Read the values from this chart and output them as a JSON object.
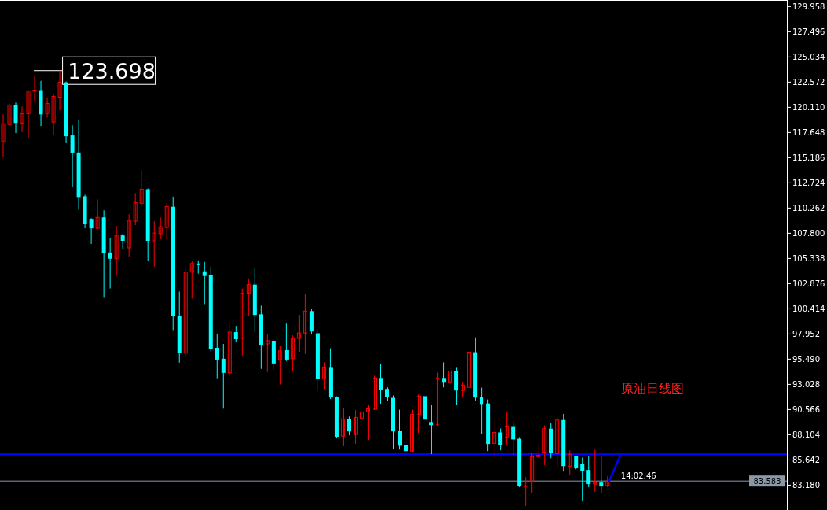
{
  "chart_data": {
    "type": "candlestick",
    "title": "原油日线图",
    "categories": [
      null,
      null,
      null,
      null,
      null,
      null,
      null,
      null,
      null,
      null,
      null,
      null,
      null,
      null,
      null,
      null,
      null,
      null,
      null,
      null,
      null,
      null,
      null,
      null,
      null,
      null,
      null,
      null,
      null,
      null,
      null,
      null,
      null,
      null,
      null,
      null,
      null,
      null,
      null,
      null,
      null,
      null,
      null,
      null,
      null,
      null,
      null,
      null,
      null,
      null,
      null,
      null,
      null,
      null,
      null,
      null,
      null,
      null,
      null,
      null,
      null,
      null,
      null,
      null,
      null,
      null,
      null,
      null,
      null,
      null,
      null,
      null,
      null,
      null,
      null,
      null,
      null,
      null,
      null,
      null,
      null,
      null,
      null,
      null,
      null,
      null,
      null,
      null,
      null,
      null,
      null,
      null,
      null,
      null,
      null,
      null,
      null,
      null,
      null,
      null,
      null,
      null,
      null,
      null,
      null,
      null,
      null,
      null,
      null,
      null,
      null,
      null,
      null,
      null,
      null,
      null,
      null,
      null,
      null,
      null,
      null,
      null,
      null,
      null,
      null
    ],
    "ohlc": [
      [
        116.75,
        119.42,
        115.22,
        118.5
      ],
      [
        118.43,
        120.41,
        118.35,
        120.34
      ],
      [
        120.34,
        120.57,
        117.59,
        118.58
      ],
      [
        118.58,
        120.18,
        117.67,
        119.5
      ],
      [
        119.5,
        121.79,
        117.13,
        121.71
      ],
      [
        121.71,
        123.16,
        120.72,
        121.79
      ],
      [
        121.79,
        122.7,
        118.28,
        119.42
      ],
      [
        119.5,
        121.02,
        119.12,
        120.49
      ],
      [
        118.66,
        121.41,
        117.44,
        121.18
      ],
      [
        121.1,
        123.698,
        119.8,
        122.55
      ],
      [
        122.55,
        122.63,
        116.6,
        117.28
      ],
      [
        117.36,
        118.35,
        112.32,
        115.68
      ],
      [
        115.69,
        118.89,
        110.11,
        111.34
      ],
      [
        111.41,
        111.56,
        108.28,
        108.74
      ],
      [
        109.2,
        109.27,
        106.76,
        108.28
      ],
      [
        108.28,
        111.11,
        108.21,
        109.35
      ],
      [
        109.35,
        110.04,
        101.56,
        105.84
      ],
      [
        105.92,
        107.29,
        102.4,
        105.31
      ],
      [
        105.31,
        108.51,
        103.63,
        107.59
      ],
      [
        107.59,
        107.75,
        106.3,
        107.06
      ],
      [
        106.37,
        109.66,
        105.53,
        109.05
      ],
      [
        108.97,
        111.72,
        108.59,
        110.8
      ],
      [
        110.73,
        113.93,
        110.42,
        112.1
      ],
      [
        112.1,
        112.18,
        105.08,
        107.06
      ],
      [
        107.06,
        108.97,
        104.54,
        107.82
      ],
      [
        107.75,
        109.35,
        107.21,
        108.44
      ],
      [
        108.36,
        110.73,
        107.21,
        110.42
      ],
      [
        110.39,
        111.38,
        98.33,
        99.7
      ],
      [
        99.73,
        102.1,
        95.15,
        96.07
      ],
      [
        96.07,
        104.39,
        95.76,
        104.0
      ],
      [
        104.0,
        105.07,
        101.41,
        104.84
      ],
      [
        104.84,
        105.15,
        103.85,
        104.69
      ],
      [
        104.08,
        105.0,
        100.87,
        103.62
      ],
      [
        103.7,
        104.54,
        96.22,
        96.52
      ],
      [
        96.6,
        97.97,
        93.62,
        95.45
      ],
      [
        95.53,
        96.98,
        90.65,
        94.15
      ],
      [
        94.15,
        99.04,
        93.85,
        98.13
      ],
      [
        98.13,
        98.74,
        97.21,
        97.44
      ],
      [
        97.52,
        102.4,
        95.84,
        101.94
      ],
      [
        101.94,
        103.39,
        99.73,
        102.78
      ],
      [
        102.78,
        104.39,
        98.13,
        99.81
      ],
      [
        99.88,
        100.72,
        94.54,
        96.9
      ],
      [
        96.98,
        97.97,
        94.23,
        97.29
      ],
      [
        97.29,
        97.44,
        94.46,
        95.07
      ],
      [
        95.45,
        96.83,
        93.01,
        96.3
      ],
      [
        96.37,
        98.97,
        95.3,
        95.45
      ],
      [
        95.53,
        97.82,
        94.31,
        97.52
      ],
      [
        97.52,
        99.81,
        96.22,
        98.05
      ],
      [
        98.05,
        101.87,
        95.99,
        100.19
      ],
      [
        100.19,
        100.42,
        97.9,
        98.2
      ],
      [
        98.02,
        98.4,
        92.37,
        93.59
      ],
      [
        93.57,
        95.18,
        92.58,
        94.72
      ],
      [
        94.72,
        96.55,
        91.59,
        91.74
      ],
      [
        91.79,
        91.86,
        87.74,
        87.9
      ],
      [
        87.97,
        90.72,
        86.98,
        89.65
      ],
      [
        89.65,
        89.88,
        88.05,
        88.43
      ],
      [
        88.12,
        90.49,
        87.21,
        89.8
      ],
      [
        89.73,
        92.63,
        88.96,
        90.34
      ],
      [
        90.34,
        91.02,
        87.59,
        90.64
      ],
      [
        90.6,
        93.88,
        90.52,
        93.65
      ],
      [
        93.65,
        95.02,
        91.13,
        92.5
      ],
      [
        92.58,
        92.73,
        91.43,
        91.82
      ],
      [
        91.71,
        91.94,
        86.75,
        88.43
      ],
      [
        88.49,
        90.55,
        86.65,
        87.03
      ],
      [
        87.11,
        89.09,
        85.66,
        86.5
      ],
      [
        86.5,
        90.55,
        86.42,
        90.09
      ],
      [
        90.12,
        92.03,
        88.29,
        91.87
      ],
      [
        91.87,
        92.03,
        89.51,
        89.58
      ],
      [
        89.34,
        91.02,
        86.21,
        89.04
      ],
      [
        89.07,
        94.18,
        88.99,
        93.65
      ],
      [
        93.65,
        95.18,
        92.73,
        93.27
      ],
      [
        93.27,
        95.71,
        92.81,
        94.33
      ],
      [
        94.33,
        94.72,
        91.05,
        92.43
      ],
      [
        92.43,
        93.27,
        91.82,
        92.96
      ],
      [
        92.73,
        96.4,
        92.66,
        96.17
      ],
      [
        96.17,
        97.62,
        91.43,
        91.74
      ],
      [
        91.8,
        92.71,
        88.21,
        91.11
      ],
      [
        91.16,
        91.55,
        86.51,
        87.2
      ],
      [
        87.26,
        89.63,
        85.89,
        88.33
      ],
      [
        88.33,
        88.71,
        86.58,
        87.11
      ],
      [
        87.88,
        90.32,
        87.11,
        88.94
      ],
      [
        88.94,
        89.4,
        86.12,
        87.64
      ],
      [
        87.71,
        87.87,
        82.97,
        83.05
      ],
      [
        83.04,
        83.96,
        81.13,
        83.5
      ],
      [
        83.51,
        86.34,
        82.37,
        85.96
      ],
      [
        85.96,
        87.18,
        85.88,
        86.11
      ],
      [
        86.41,
        89.01,
        85.11,
        88.7
      ],
      [
        88.7,
        89.24,
        85.8,
        86.34
      ],
      [
        86.26,
        89.77,
        84.96,
        89.54
      ],
      [
        89.54,
        90.14,
        84.5,
        85.04
      ],
      [
        85.04,
        86.57,
        84.2,
        86.19
      ],
      [
        86.03,
        86.03,
        84.73,
        84.88
      ],
      [
        85.27,
        85.88,
        81.68,
        84.58
      ],
      [
        84.66,
        86.03,
        82.97,
        83.28
      ],
      [
        83.28,
        86.64,
        82.52,
        83.43
      ],
      [
        83.43,
        85.96,
        82.37,
        83.05
      ],
      [
        83.13,
        84.04,
        82.97,
        83.583
      ],
      null,
      null,
      null,
      null,
      null,
      null,
      null,
      null,
      null,
      null,
      null,
      null,
      null,
      null,
      null,
      null,
      null,
      null,
      null,
      null,
      null,
      null,
      null,
      null,
      null,
      null,
      null,
      null
    ],
    "ylim": [
      80.75,
      130.6
    ],
    "yticks": [
      129.958,
      127.496,
      125.034,
      122.572,
      {
        "value": 120.11,
        "label": "120.110"
      },
      117.648,
      115.186,
      112.724,
      110.262,
      {
        "value": 107.8,
        "label": "107.800"
      },
      105.338,
      102.876,
      100.414,
      97.952,
      {
        "value": 95.49,
        "label": "95.490"
      },
      93.028,
      90.566,
      88.104,
      85.642,
      {
        "value": 83.18,
        "label": "83.180"
      }
    ],
    "ref_lines": [
      {
        "axis": "y",
        "value": 86.21,
        "color": "#0000ff"
      },
      {
        "axis": "y",
        "value": 83.583,
        "label": "83.583",
        "color": "#8a98a8"
      }
    ],
    "annotations": [
      "14:02:46",
      "123.698"
    ],
    "grid": false
  }
}
